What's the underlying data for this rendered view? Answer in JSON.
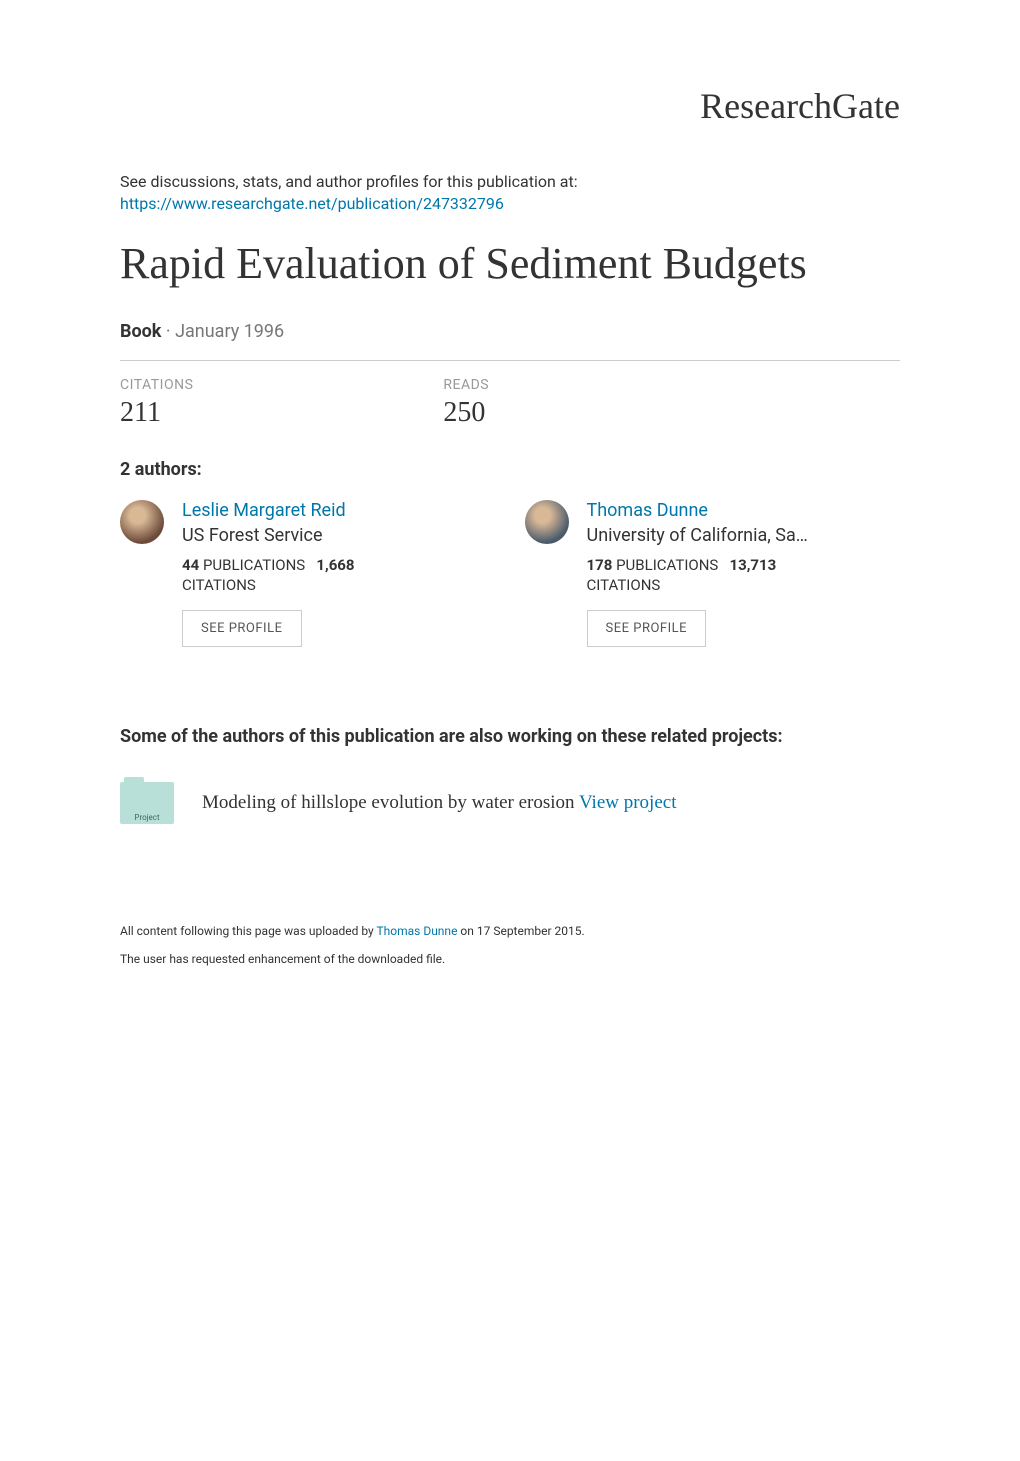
{
  "brand": {
    "name": "ResearchGate",
    "color": "#333333"
  },
  "header": {
    "discussions_text": "See discussions, stats, and author profiles for this publication at:",
    "publication_url": "https://www.researchgate.net/publication/247332796"
  },
  "publication": {
    "title": "Rapid Evaluation of Sediment Budgets",
    "type": "Book",
    "separator": " · ",
    "date": "January 1996"
  },
  "stats": {
    "citations": {
      "label": "CITATIONS",
      "value": "211"
    },
    "reads": {
      "label": "READS",
      "value": "250"
    }
  },
  "authors_section": {
    "label": "2 authors:",
    "see_profile_label": "SEE PROFILE",
    "authors": [
      {
        "name": "Leslie Margaret Reid",
        "affiliation": "US Forest Service",
        "publications_count": "44",
        "publications_label": "PUBLICATIONS",
        "citations_count": "1,668",
        "citations_label": "CITATIONS",
        "avatar_bg": "#6b4a3a"
      },
      {
        "name": "Thomas Dunne",
        "affiliation": "University of California, Sa…",
        "publications_count": "178",
        "publications_label": "PUBLICATIONS",
        "citations_count": "13,713",
        "citations_label": "CITATIONS",
        "avatar_bg": "#4a5a6b"
      }
    ]
  },
  "related_projects": {
    "heading": "Some of the authors of this publication are also working on these related projects:",
    "icon_label": "Project",
    "icon_bg": "#b8e0d8",
    "projects": [
      {
        "title": "Modeling of hillslope evolution by water erosion ",
        "view_link_text": "View project"
      }
    ]
  },
  "footer": {
    "line1_prefix": "All content following this page was uploaded by ",
    "uploader": "Thomas Dunne",
    "line1_suffix": " on 17 September 2015.",
    "line2": "The user has requested enhancement of the downloaded file."
  },
  "colors": {
    "link": "#0077aa",
    "text": "#333333",
    "muted": "#777777",
    "label": "#999999",
    "border": "#cccccc"
  },
  "typography": {
    "title_fontsize": 44,
    "body_fontsize": 16,
    "stat_value_fontsize": 28,
    "serif_family": "Georgia, Times New Roman, serif"
  }
}
